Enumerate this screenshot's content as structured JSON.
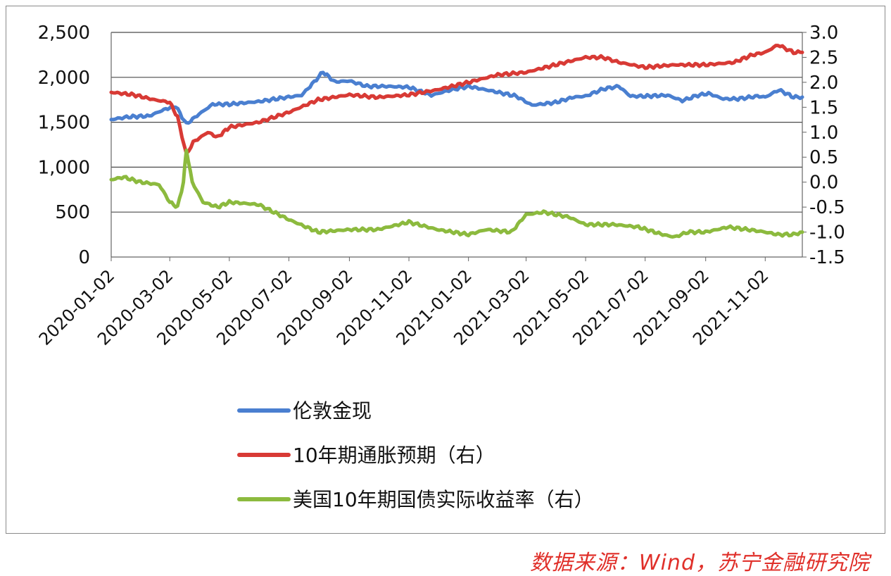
{
  "chart_data": {
    "type": "line",
    "title": "",
    "x_categories": [
      "2020-01-02",
      "2020-03-02",
      "2020-05-02",
      "2020-07-02",
      "2020-09-02",
      "2020-11-02",
      "2021-01-02",
      "2021-03-02",
      "2021-05-02",
      "2021-07-02",
      "2021-09-02",
      "2021-11-02"
    ],
    "x_range": [
      "2020-01-02",
      "2021-12-10"
    ],
    "y_left": {
      "ylim": [
        0,
        2500
      ],
      "ticks": [
        "0",
        "500",
        "1,000",
        "1,500",
        "2,000",
        "2,500"
      ]
    },
    "y_right": {
      "ylim": [
        -1.5,
        3.0
      ],
      "ticks": [
        "-1.5",
        "-1.0",
        "-0.5",
        "0.0",
        "0.5",
        "1.0",
        "1.5",
        "2.0",
        "2.5",
        "3.0"
      ]
    },
    "grid": "horizontal",
    "legend_position": "bottom",
    "series": [
      {
        "name": "伦敦金现",
        "axis": "left",
        "color": "#4a7fd0",
        "points": [
          [
            "2020-01-02",
            1530
          ],
          [
            "2020-01-20",
            1560
          ],
          [
            "2020-02-10",
            1570
          ],
          [
            "2020-02-25",
            1640
          ],
          [
            "2020-03-08",
            1680
          ],
          [
            "2020-03-19",
            1480
          ],
          [
            "2020-04-01",
            1590
          ],
          [
            "2020-04-15",
            1700
          ],
          [
            "2020-05-02",
            1700
          ],
          [
            "2020-06-01",
            1730
          ],
          [
            "2020-06-25",
            1770
          ],
          [
            "2020-07-15",
            1800
          ],
          [
            "2020-07-28",
            1950
          ],
          [
            "2020-08-06",
            2060
          ],
          [
            "2020-08-18",
            1950
          ],
          [
            "2020-09-02",
            1960
          ],
          [
            "2020-09-20",
            1900
          ],
          [
            "2020-10-10",
            1900
          ],
          [
            "2020-11-02",
            1890
          ],
          [
            "2020-11-25",
            1800
          ],
          [
            "2020-12-15",
            1860
          ],
          [
            "2021-01-02",
            1900
          ],
          [
            "2021-01-25",
            1850
          ],
          [
            "2021-02-20",
            1790
          ],
          [
            "2021-03-08",
            1690
          ],
          [
            "2021-04-01",
            1720
          ],
          [
            "2021-04-20",
            1780
          ],
          [
            "2021-05-02",
            1790
          ],
          [
            "2021-05-20",
            1870
          ],
          [
            "2021-06-05",
            1900
          ],
          [
            "2021-06-17",
            1790
          ],
          [
            "2021-07-02",
            1790
          ],
          [
            "2021-07-25",
            1800
          ],
          [
            "2021-08-09",
            1740
          ],
          [
            "2021-08-25",
            1800
          ],
          [
            "2021-09-05",
            1820
          ],
          [
            "2021-09-20",
            1760
          ],
          [
            "2021-10-05",
            1760
          ],
          [
            "2021-10-25",
            1790
          ],
          [
            "2021-11-02",
            1780
          ],
          [
            "2021-11-16",
            1860
          ],
          [
            "2021-12-01",
            1780
          ],
          [
            "2021-12-10",
            1780
          ]
        ]
      },
      {
        "name": "10年期通胀预期（右）",
        "axis": "right",
        "color": "#d83a35",
        "points": [
          [
            "2020-01-02",
            1.8
          ],
          [
            "2020-01-25",
            1.75
          ],
          [
            "2020-02-15",
            1.65
          ],
          [
            "2020-03-02",
            1.6
          ],
          [
            "2020-03-10",
            1.3
          ],
          [
            "2020-03-19",
            0.55
          ],
          [
            "2020-03-26",
            0.8
          ],
          [
            "2020-04-10",
            1.0
          ],
          [
            "2020-04-20",
            0.9
          ],
          [
            "2020-05-02",
            1.1
          ],
          [
            "2020-06-01",
            1.2
          ],
          [
            "2020-07-02",
            1.4
          ],
          [
            "2020-08-01",
            1.65
          ],
          [
            "2020-09-02",
            1.75
          ],
          [
            "2020-10-01",
            1.7
          ],
          [
            "2020-11-02",
            1.75
          ],
          [
            "2020-12-01",
            1.85
          ],
          [
            "2021-01-02",
            2.0
          ],
          [
            "2021-02-01",
            2.15
          ],
          [
            "2021-03-02",
            2.2
          ],
          [
            "2021-04-01",
            2.35
          ],
          [
            "2021-05-02",
            2.5
          ],
          [
            "2021-05-20",
            2.5
          ],
          [
            "2021-06-05",
            2.4
          ],
          [
            "2021-07-02",
            2.3
          ],
          [
            "2021-08-01",
            2.35
          ],
          [
            "2021-09-02",
            2.35
          ],
          [
            "2021-10-01",
            2.4
          ],
          [
            "2021-10-20",
            2.55
          ],
          [
            "2021-11-02",
            2.6
          ],
          [
            "2021-11-15",
            2.75
          ],
          [
            "2021-12-01",
            2.6
          ],
          [
            "2021-12-10",
            2.6
          ]
        ]
      },
      {
        "name": "美国10年期国债实际收益率（右）",
        "axis": "right",
        "color": "#8cba3e",
        "points": [
          [
            "2020-01-02",
            0.05
          ],
          [
            "2020-01-15",
            0.1
          ],
          [
            "2020-02-01",
            0.0
          ],
          [
            "2020-02-20",
            -0.05
          ],
          [
            "2020-03-02",
            -0.4
          ],
          [
            "2020-03-10",
            -0.5
          ],
          [
            "2020-03-16",
            0.0
          ],
          [
            "2020-03-19",
            0.65
          ],
          [
            "2020-03-25",
            0.0
          ],
          [
            "2020-04-05",
            -0.4
          ],
          [
            "2020-04-20",
            -0.5
          ],
          [
            "2020-05-02",
            -0.4
          ],
          [
            "2020-06-01",
            -0.45
          ],
          [
            "2020-07-02",
            -0.75
          ],
          [
            "2020-08-01",
            -1.0
          ],
          [
            "2020-09-02",
            -0.95
          ],
          [
            "2020-10-01",
            -0.95
          ],
          [
            "2020-11-02",
            -0.8
          ],
          [
            "2020-12-01",
            -0.95
          ],
          [
            "2021-01-02",
            -1.05
          ],
          [
            "2021-01-20",
            -0.95
          ],
          [
            "2021-02-15",
            -1.0
          ],
          [
            "2021-03-02",
            -0.65
          ],
          [
            "2021-03-20",
            -0.6
          ],
          [
            "2021-04-15",
            -0.7
          ],
          [
            "2021-05-02",
            -0.85
          ],
          [
            "2021-06-01",
            -0.85
          ],
          [
            "2021-06-25",
            -0.9
          ],
          [
            "2021-07-20",
            -1.05
          ],
          [
            "2021-08-01",
            -1.1
          ],
          [
            "2021-08-15",
            -1.0
          ],
          [
            "2021-09-02",
            -1.0
          ],
          [
            "2021-09-25",
            -0.9
          ],
          [
            "2021-10-15",
            -0.95
          ],
          [
            "2021-11-02",
            -1.0
          ],
          [
            "2021-11-15",
            -1.05
          ],
          [
            "2021-12-01",
            -1.05
          ],
          [
            "2021-12-10",
            -1.0
          ]
        ]
      }
    ]
  },
  "source_note": "数据来源：Wind，苏宁金融研究院"
}
